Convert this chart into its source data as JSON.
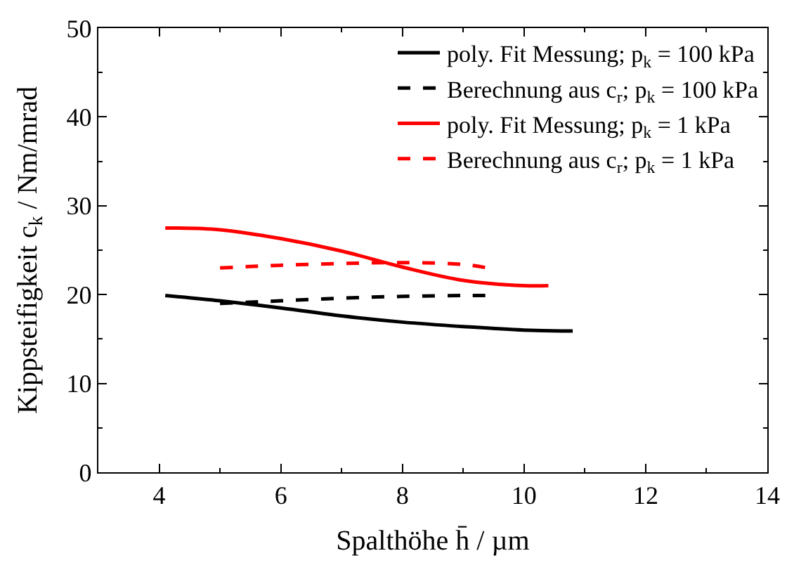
{
  "chart_data": {
    "type": "line",
    "xlabel": "Spalthöhe h̄ / µm",
    "ylabel": "Kippsteifigkeit c$_{k}$ / Nm/mrad",
    "xlim": [
      3,
      14
    ],
    "xticks": [
      4,
      6,
      8,
      10,
      12,
      14
    ],
    "ylim": [
      0,
      50
    ],
    "yticks": [
      0,
      10,
      20,
      30,
      40,
      50
    ],
    "grid": false,
    "legend": "top right",
    "marker": "none",
    "series": [
      {
        "name": "poly. Fit Messung; p$_{k}$ = 100 kPa",
        "color": "#000000",
        "line_style": "solid",
        "x": [
          4.1,
          5,
          6,
          7,
          8,
          9,
          10,
          10.8
        ],
        "values": [
          19.9,
          19.3,
          18.5,
          17.6,
          16.9,
          16.4,
          16.0,
          15.9
        ]
      },
      {
        "name": "Berechnung aus c$_{r}$; p$_{k}$ = 100 kPa",
        "color": "#000000",
        "line_style": "dashed",
        "x": [
          5,
          6,
          7,
          8,
          9,
          9.4
        ],
        "values": [
          19.0,
          19.3,
          19.6,
          19.8,
          19.9,
          19.9
        ]
      },
      {
        "name": "poly. Fit Messung; p$_{k}$ = 1 kPa",
        "color": "#ff0000",
        "line_style": "solid",
        "x": [
          4.1,
          5,
          6,
          7,
          8,
          9,
          10,
          10.4
        ],
        "values": [
          27.5,
          27.3,
          26.3,
          24.9,
          23.1,
          21.6,
          21.0,
          21.0
        ]
      },
      {
        "name": "Berechnung aus c$_{r}$; p$_{k}$ = 1 kPa",
        "color": "#ff0000",
        "line_style": "dashed",
        "x": [
          5,
          6,
          7,
          8,
          9,
          9.4
        ],
        "values": [
          23.0,
          23.3,
          23.5,
          23.6,
          23.4,
          23.0
        ]
      }
    ]
  }
}
